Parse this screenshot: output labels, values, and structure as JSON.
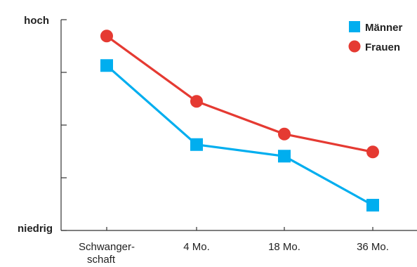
{
  "chart_data": {
    "type": "line",
    "title": "",
    "xlabel": "",
    "ylabel": "",
    "y_top_label": "hoch",
    "y_bottom_label": "niedrig",
    "categories": [
      [
        "Schwanger-",
        "schaft"
      ],
      [
        "4 Mo."
      ],
      [
        "18 Mo."
      ],
      [
        "36 Mo."
      ]
    ],
    "ylim": [
      0,
      4
    ],
    "series": [
      {
        "name": "Männer",
        "color": "#00aeef",
        "marker": "square",
        "values": [
          3.13,
          1.63,
          1.41,
          0.48
        ]
      },
      {
        "name": "Frauen",
        "color": "#e53a32",
        "marker": "circle",
        "values": [
          3.69,
          2.45,
          1.83,
          1.49
        ]
      }
    ],
    "legend": "top-right",
    "grid": false
  }
}
